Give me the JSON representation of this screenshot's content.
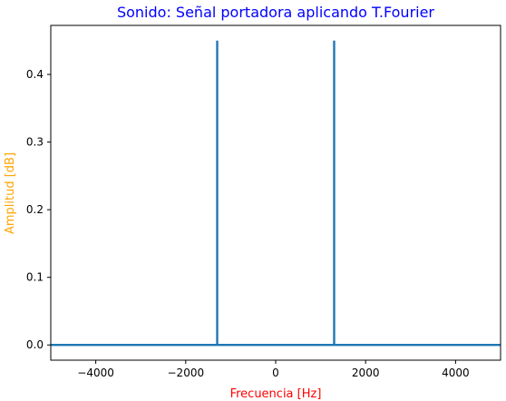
{
  "chart_data": {
    "type": "line",
    "title": "Sonido: Señal portadora aplicando T.Fourier",
    "xlabel": "Frecuencia [Hz]",
    "ylabel": "Amplitud [dB]",
    "xlim": [
      -5000,
      5000
    ],
    "ylim": [
      -0.0225,
      0.4725
    ],
    "xticks": [
      -4000,
      -2000,
      0,
      2000,
      4000
    ],
    "xtick_labels": [
      "−4000",
      "−2000",
      "0",
      "2000",
      "4000"
    ],
    "yticks": [
      0.0,
      0.1,
      0.2,
      0.3,
      0.4
    ],
    "ytick_labels": [
      "0.0",
      "0.1",
      "0.2",
      "0.3",
      "0.4"
    ],
    "grid": false,
    "series": [
      {
        "color": "#1f77b4",
        "x": [
          -5000,
          -1300,
          -1300,
          -1300,
          1300,
          1300,
          1300,
          5000
        ],
        "y": [
          0,
          0,
          0.45,
          0,
          0,
          0.45,
          0,
          0
        ]
      }
    ],
    "colors": {
      "title": "#0000ff",
      "xlabel": "#ff0000",
      "ylabel": "#ffa500",
      "line": "#1f77b4",
      "axes": "#000000"
    }
  }
}
